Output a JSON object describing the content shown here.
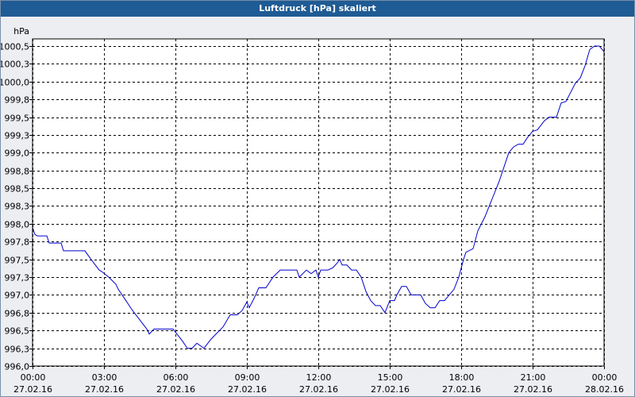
{
  "window": {
    "title": "Luftdruck [hPa] skaliert"
  },
  "colors": {
    "titlebar": "#1f5b94",
    "line": "#0000cc",
    "plot_bg": "#ffffff",
    "grid": "#000000"
  },
  "chart_data": {
    "type": "line",
    "title": "Luftdruck [hPa] skaliert",
    "ylabel": "hPa",
    "xlabel": "",
    "ylim": [
      996.0,
      1000.6
    ],
    "grid": true,
    "y_ticks": [
      "996,0",
      "996,3",
      "996,5",
      "996,8",
      "997,0",
      "997,3",
      "997,5",
      "997,8",
      "998,0",
      "998,3",
      "998,5",
      "998,8",
      "999,0",
      "999,3",
      "999,5",
      "999,8",
      "1000,0",
      "1000,3",
      "1000,5"
    ],
    "y_tick_values": [
      996.0,
      996.25,
      996.5,
      996.75,
      997.0,
      997.25,
      997.5,
      997.75,
      998.0,
      998.25,
      998.5,
      998.75,
      999.0,
      999.25,
      999.5,
      999.75,
      1000.0,
      1000.25,
      1000.5
    ],
    "x_ticks": [
      {
        "time": "00:00",
        "date": "27.02.16",
        "hour": 0
      },
      {
        "time": "03:00",
        "date": "27.02.16",
        "hour": 3
      },
      {
        "time": "06:00",
        "date": "27.02.16",
        "hour": 6
      },
      {
        "time": "09:00",
        "date": "27.02.16",
        "hour": 9
      },
      {
        "time": "12:00",
        "date": "27.02.16",
        "hour": 12
      },
      {
        "time": "15:00",
        "date": "27.02.16",
        "hour": 15
      },
      {
        "time": "18:00",
        "date": "27.02.16",
        "hour": 18
      },
      {
        "time": "21:00",
        "date": "27.02.16",
        "hour": 21
      },
      {
        "time": "00:00",
        "date": "28.02.16",
        "hour": 24
      }
    ],
    "series": [
      {
        "color": "#0000cc",
        "x_hours": [
          0,
          0.1,
          0.2,
          0.6,
          0.7,
          1.2,
          1.3,
          2.2,
          2.5,
          2.8,
          2.9,
          3.2,
          3.5,
          3.6,
          3.9,
          4.2,
          4.5,
          4.8,
          4.9,
          5.1,
          5.3,
          5.9,
          6.3,
          6.5,
          6.7,
          6.9,
          7.2,
          7.5,
          8.0,
          8.3,
          8.6,
          8.8,
          9.0,
          9.1,
          9.3,
          9.5,
          9.8,
          10.1,
          10.4,
          10.6,
          10.8,
          11.1,
          11.2,
          11.5,
          11.7,
          11.9,
          12.0,
          12.1,
          12.4,
          12.6,
          12.8,
          12.9,
          13.0,
          13.2,
          13.4,
          13.6,
          13.8,
          14.0,
          14.2,
          14.4,
          14.6,
          14.8,
          15.0,
          15.2,
          15.3,
          15.5,
          15.7,
          15.9,
          16.1,
          16.3,
          16.5,
          16.7,
          16.9,
          17.1,
          17.3,
          17.5,
          17.7,
          17.9,
          18.1,
          18.2,
          18.5,
          18.7,
          19.0,
          19.3,
          19.6,
          19.8,
          20.0,
          20.2,
          20.4,
          20.6,
          20.8,
          21.0,
          21.2,
          21.5,
          21.7,
          21.8,
          22.0,
          22.2,
          22.4,
          22.6,
          22.8,
          23.0,
          23.2,
          23.4,
          23.6,
          23.8,
          24.0
        ],
        "y": [
          997.95,
          997.85,
          997.83,
          997.83,
          997.73,
          997.73,
          997.62,
          997.62,
          997.48,
          997.35,
          997.33,
          997.25,
          997.15,
          997.08,
          996.93,
          996.78,
          996.65,
          996.52,
          996.45,
          996.52,
          996.52,
          996.52,
          996.35,
          996.25,
          996.25,
          996.32,
          996.25,
          996.38,
          996.55,
          996.72,
          996.72,
          996.78,
          996.9,
          996.82,
          996.95,
          997.1,
          997.1,
          997.25,
          997.35,
          997.35,
          997.35,
          997.35,
          997.25,
          997.35,
          997.3,
          997.35,
          997.25,
          997.35,
          997.35,
          997.38,
          997.45,
          997.5,
          997.42,
          997.42,
          997.35,
          997.35,
          997.25,
          997.05,
          996.92,
          996.85,
          996.85,
          996.75,
          996.92,
          996.92,
          997.0,
          997.12,
          997.12,
          997.0,
          997.0,
          997.0,
          996.88,
          996.82,
          996.82,
          996.92,
          996.92,
          997.0,
          997.08,
          997.25,
          997.5,
          997.6,
          997.65,
          997.9,
          998.1,
          998.35,
          998.6,
          998.8,
          999.0,
          999.08,
          999.12,
          999.12,
          999.22,
          999.3,
          999.32,
          999.45,
          999.5,
          999.5,
          999.5,
          999.7,
          999.72,
          999.85,
          999.98,
          1000.05,
          1000.22,
          1000.45,
          1000.5,
          1000.5,
          1000.42
        ]
      }
    ]
  }
}
